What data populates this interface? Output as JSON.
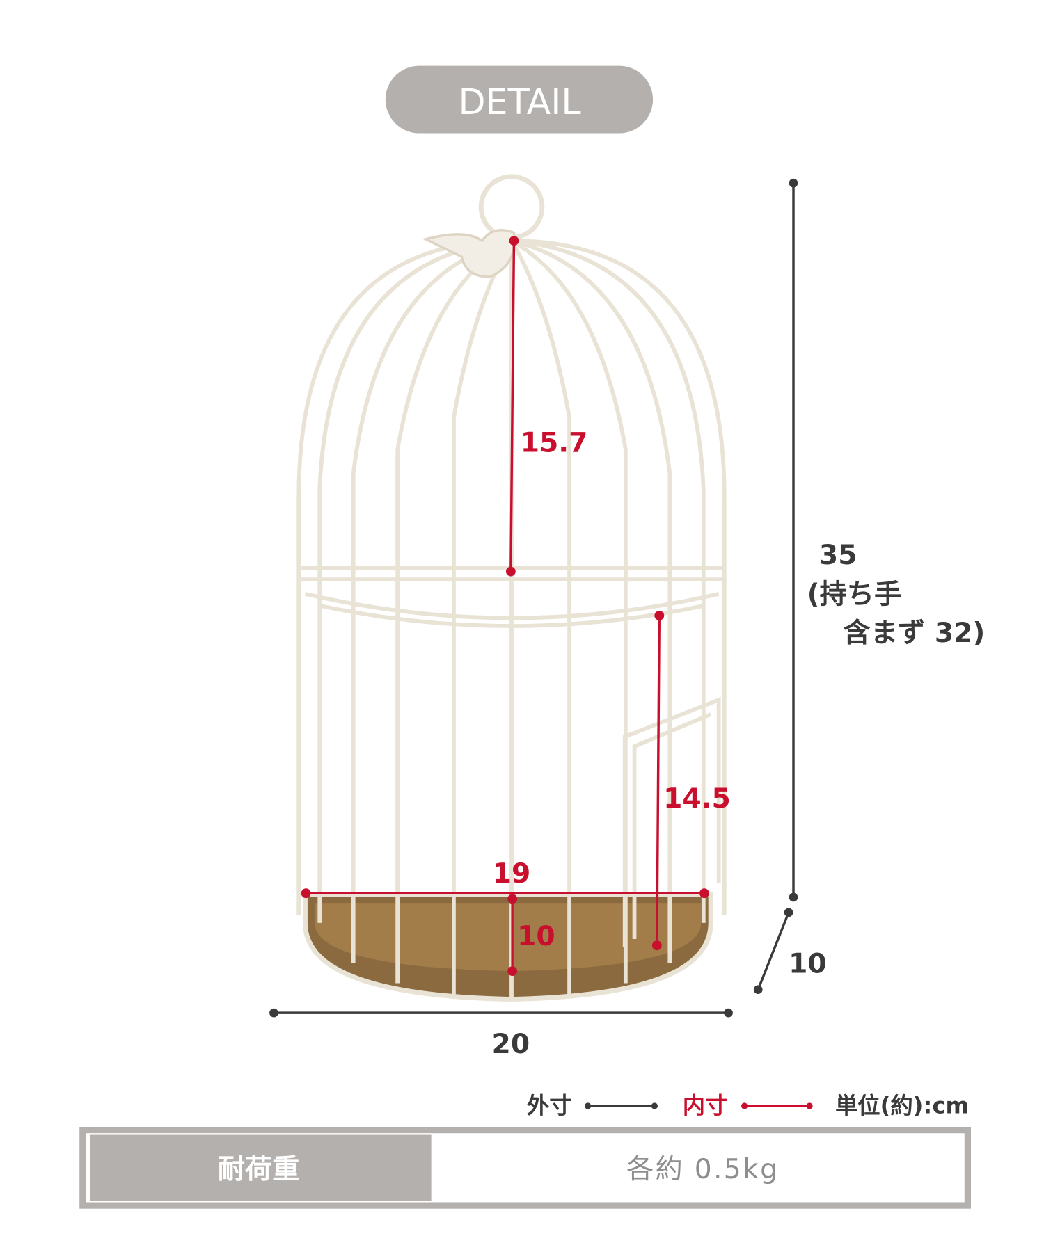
{
  "header": {
    "title": "DETAIL"
  },
  "dimensions": {
    "outer_height": "35",
    "outer_height_note_line1": "(持ち手",
    "outer_height_note_line2": "含まず 32)",
    "outer_width": "20",
    "outer_depth": "10",
    "inner_upper_height": "15.7",
    "inner_lower_height": "14.5",
    "inner_width": "19",
    "inner_depth": "10"
  },
  "legend": {
    "outer_label": "外寸",
    "inner_label": "内寸",
    "unit_label": "単位(約):cm"
  },
  "spec_table": {
    "label": "耐荷重",
    "value": "各約 0.5kg"
  },
  "colors": {
    "outer": "#3a3a3a",
    "inner": "#c8102e",
    "badge": "#b3b0ae",
    "wood": "#8a6a3e",
    "wire": "#efeadf"
  }
}
